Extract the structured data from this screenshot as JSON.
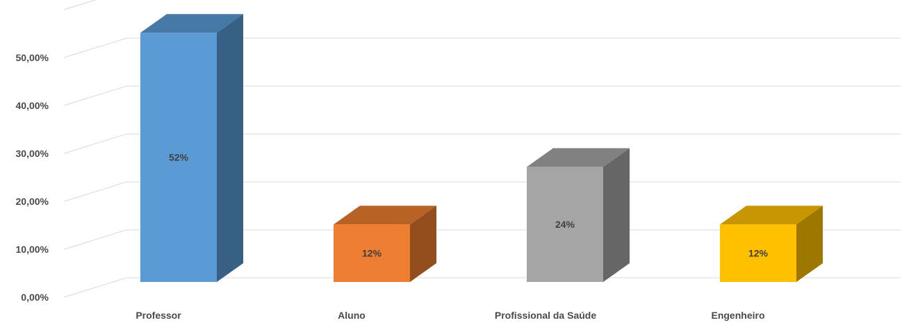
{
  "chart_data": {
    "type": "bar",
    "style": "3d-column",
    "categories": [
      "Professor",
      "Aluno",
      "Profissional da Saúde",
      "Engenheiro"
    ],
    "values": [
      52,
      12,
      24,
      12
    ],
    "data_labels": [
      "52%",
      "12%",
      "24%",
      "12%"
    ],
    "colors": [
      "#5b9bd5",
      "#ed7d31",
      "#a5a5a5",
      "#ffc000"
    ],
    "y_ticks": [
      "0,00%",
      "10,00%",
      "20,00%",
      "30,00%",
      "40,00%",
      "50,00%"
    ],
    "ylim": [
      0,
      60
    ],
    "grid": true,
    "legend": "none"
  }
}
